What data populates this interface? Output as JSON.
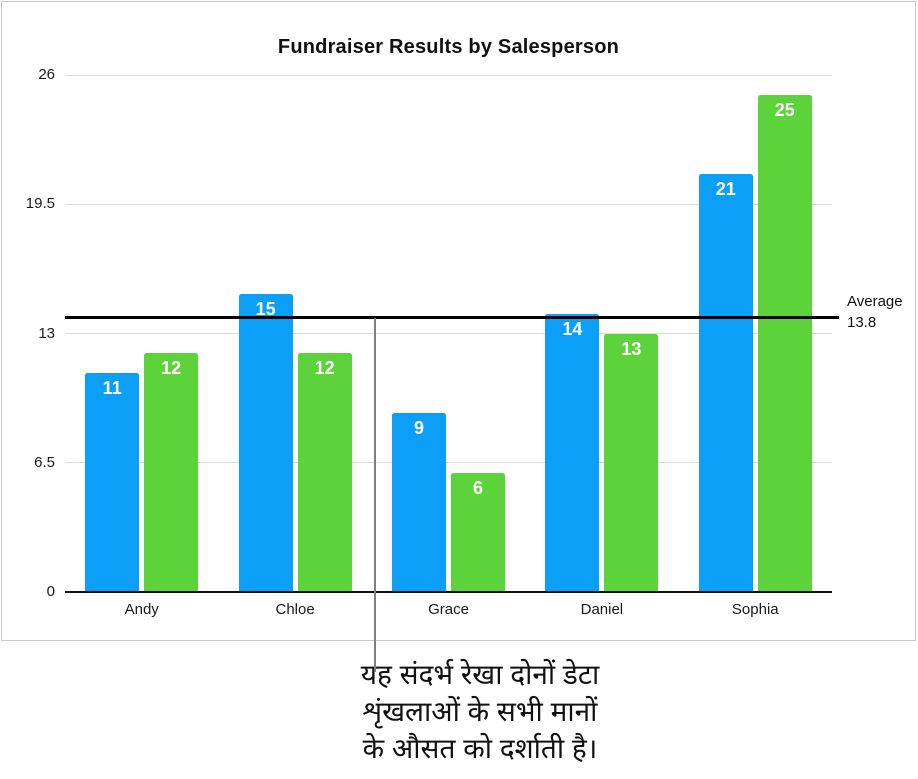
{
  "chart_data": {
    "type": "bar",
    "title": "Fundraiser Results by Salesperson",
    "categories": [
      "Andy",
      "Chloe",
      "Grace",
      "Daniel",
      "Sophia"
    ],
    "series": [
      {
        "color": "#0b9ff7",
        "values": [
          11,
          15,
          9,
          14,
          21
        ]
      },
      {
        "color": "#5cd23b",
        "values": [
          12,
          12,
          6,
          13,
          25
        ]
      }
    ],
    "ylim": [
      0,
      26
    ],
    "yticks": [
      0,
      6.5,
      13,
      19.5,
      26
    ],
    "grid": true,
    "legend_position": "none",
    "reference_line": {
      "value": 13.8,
      "label_title": "Average",
      "label_value": "13.8"
    }
  },
  "annotation": {
    "lines": [
      "यह संदर्भ रेखा दोनों डेटा",
      "शृंखलाओं के सभी मानों",
      "के औसत को दर्शाती है।"
    ]
  },
  "colors": {
    "series1": "#0b9ff7",
    "series2": "#5cd23b",
    "gridline": "#dadada",
    "axis": "#111111",
    "reference_line": "#000000",
    "callout_line": "#7f7f7f",
    "panel_border": "#c9c9c9",
    "bar_label_text": "#ffffff"
  }
}
